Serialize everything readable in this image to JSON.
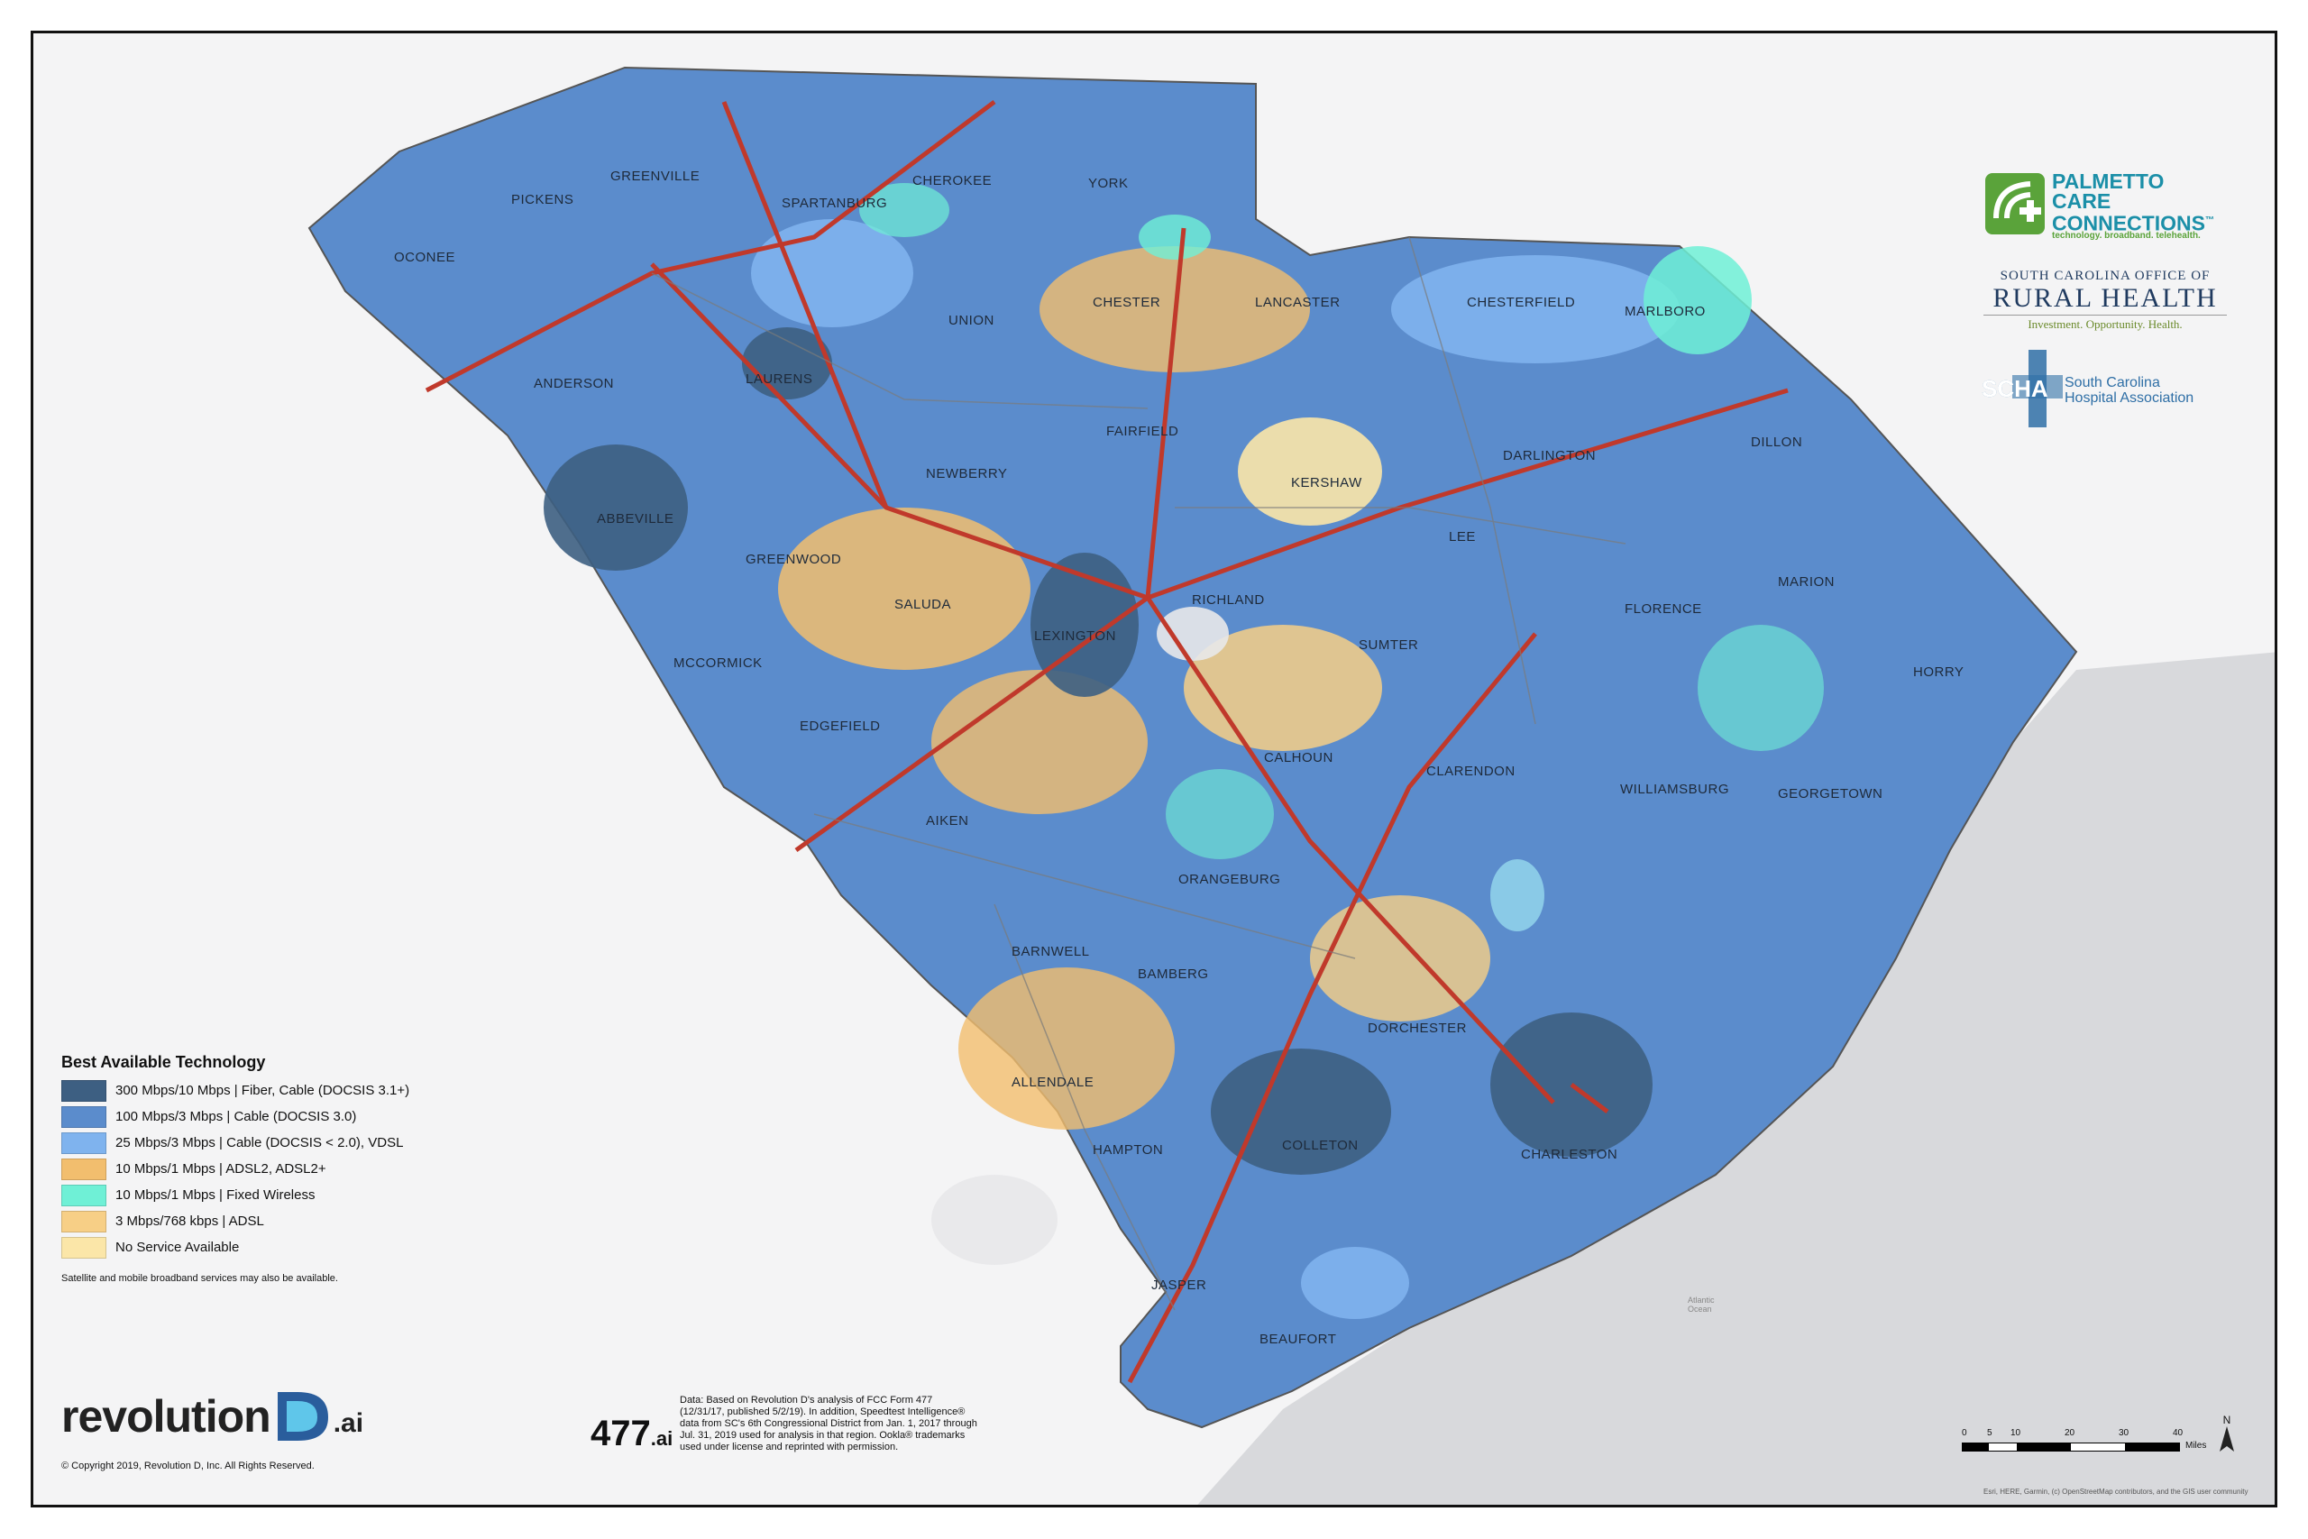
{
  "legend": {
    "title": "Best Available Technology",
    "items": [
      {
        "label": "300 Mbps/10 Mbps | Fiber, Cable (DOCSIS 3.1+)",
        "color": "#3d5f82"
      },
      {
        "label": "100 Mbps/3 Mbps | Cable (DOCSIS 3.0)",
        "color": "#5b8ccc"
      },
      {
        "label": "25 Mbps/3 Mbps | Cable (DOCSIS < 2.0), VDSL",
        "color": "#7fb3ee"
      },
      {
        "label": "10 Mbps/1 Mbps | ADSL2, ADSL2+",
        "color": "#f2be6e"
      },
      {
        "label": "10 Mbps/1 Mbps | Fixed Wireless",
        "color": "#6ff0d6"
      },
      {
        "label": "3 Mbps/768 kbps | ADSL",
        "color": "#f7cf86"
      },
      {
        "label": "No Service Available",
        "color": "#fbe6a8"
      }
    ],
    "note": "Satellite and mobile broadband services may also be available."
  },
  "counties": [
    "PICKENS",
    "OCONEE",
    "GREENVILLE",
    "SPARTANBURG",
    "CHEROKEE",
    "YORK",
    "UNION",
    "CHESTER",
    "LANCASTER",
    "CHESTERFIELD",
    "MARLBORO",
    "ANDERSON",
    "LAURENS",
    "FAIRFIELD",
    "KERSHAW",
    "DARLINGTON",
    "DILLON",
    "NEWBERRY",
    "ABBEVILLE",
    "GREENWOOD",
    "SALUDA",
    "LEXINGTON",
    "RICHLAND",
    "LEE",
    "MARION",
    "SUMTER",
    "FLORENCE",
    "HORRY",
    "MCCORMICK",
    "EDGEFIELD",
    "AIKEN",
    "CALHOUN",
    "CLARENDON",
    "WILLIAMSBURG",
    "GEORGETOWN",
    "ORANGEBURG",
    "BARNWELL",
    "BAMBERG",
    "DORCHESTER",
    "ALLENDALE",
    "HAMPTON",
    "COLLETON",
    "CHARLESTON",
    "JASPER",
    "BEAUFORT"
  ],
  "logos": {
    "pcc_lines": [
      "PALMETTO",
      "CARE",
      "CONNECTIONS"
    ],
    "pcc_tm": "™",
    "pcc_tagline": "technology. broadband. telehealth.",
    "scorh_line1": "SOUTH CAROLINA OFFICE OF",
    "scorh_line2": "RURAL HEALTH",
    "scorh_line3": "Investment. Opportunity. Health.",
    "scha_abbr": "SCHA",
    "scha_line1": "South Carolina",
    "scha_line2": "Hospital Association"
  },
  "brand": {
    "word": "revolution",
    "suffix": ".ai",
    "copyright": "© Copyright 2019, Revolution D, Inc. All Rights Reserved."
  },
  "four77": {
    "main": "477",
    "suffix": ".ai"
  },
  "data_note": "Data: Based on Revolution D's analysis of FCC Form 477 (12/31/17, published 5/2/19). In addition, Speedtest Intelligence® data from SC's 6th Congressional District from Jan. 1, 2017 through Jul. 31, 2019 used for analysis in that region. Ookla® trademarks used under license and reprinted with permission.",
  "scale": {
    "ticks": [
      "0",
      "5",
      "10",
      "20",
      "30",
      "40"
    ],
    "unit": "Miles"
  },
  "north": "N",
  "attribution": "Esri, HERE, Garmin, (c) OpenStreetMap contributors, and the GIS user community",
  "ocean": {
    "label_1": "Atlantic",
    "label_2": "Ocean"
  },
  "colors": {
    "ocean": "#d8d9dc",
    "land_outside": "#f4f4f5",
    "interstate": "#c0392b",
    "county_line": "#7a7a7a"
  }
}
